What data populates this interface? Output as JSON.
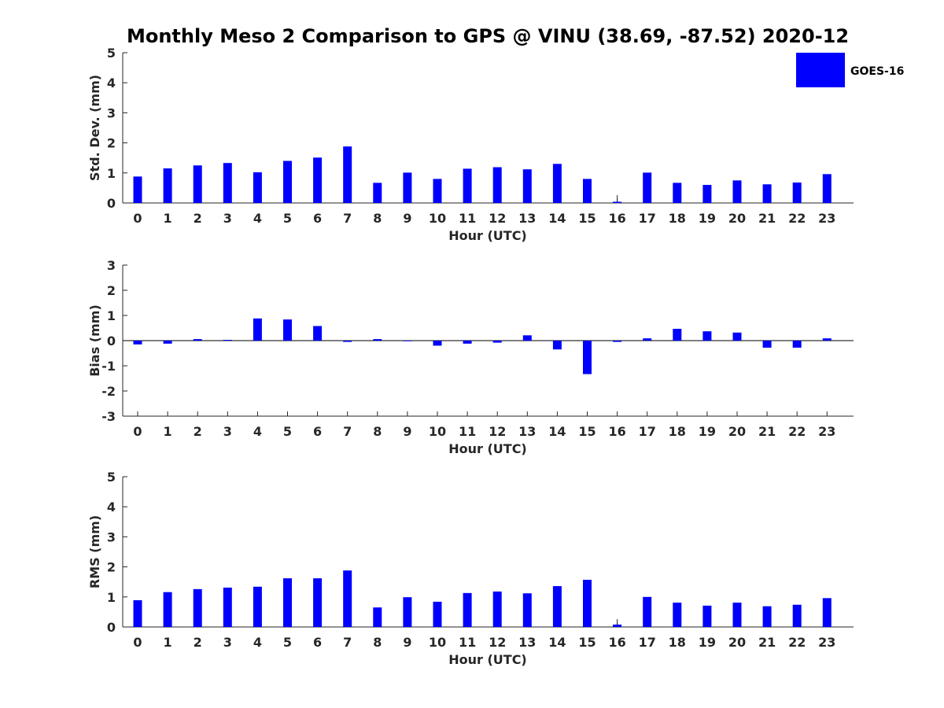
{
  "title": "Monthly Meso 2 Comparison to GPS @ VINU (38.69, -87.52) 2020-12",
  "legend": {
    "label": "GOES-16",
    "color": "#0000ff"
  },
  "chart_data": [
    {
      "type": "bar",
      "ylabel": "Std. Dev. (mm)",
      "xlabel": "Hour (UTC)",
      "ylim": [
        0,
        5
      ],
      "yticks": [
        "0",
        "1",
        "2",
        "3",
        "4",
        "5"
      ],
      "categories": [
        "0",
        "1",
        "2",
        "3",
        "4",
        "5",
        "6",
        "7",
        "8",
        "9",
        "10",
        "11",
        "12",
        "13",
        "14",
        "15",
        "16",
        "17",
        "18",
        "19",
        "20",
        "21",
        "22",
        "23"
      ],
      "series": [
        {
          "name": "GOES-16",
          "values": [
            0.88,
            1.15,
            1.25,
            1.33,
            1.02,
            1.4,
            1.51,
            1.88,
            0.67,
            1.01,
            0.8,
            1.14,
            1.19,
            1.12,
            1.3,
            0.8,
            0.04,
            1.01,
            0.67,
            0.6,
            0.75,
            0.62,
            0.68,
            0.96
          ]
        }
      ]
    },
    {
      "type": "bar",
      "ylabel": "Bias (mm)",
      "xlabel": "Hour (UTC)",
      "ylim": [
        -3,
        3
      ],
      "yticks": [
        "-3",
        "-2",
        "-1",
        "0",
        "1",
        "2",
        "3"
      ],
      "categories": [
        "0",
        "1",
        "2",
        "3",
        "4",
        "5",
        "6",
        "7",
        "8",
        "9",
        "10",
        "11",
        "12",
        "13",
        "14",
        "15",
        "16",
        "17",
        "18",
        "19",
        "20",
        "21",
        "22",
        "23"
      ],
      "series": [
        {
          "name": "GOES-16",
          "values": [
            -0.15,
            -0.12,
            0.06,
            0.03,
            0.88,
            0.84,
            0.58,
            -0.05,
            0.06,
            0.0,
            -0.2,
            -0.12,
            -0.08,
            0.21,
            -0.35,
            -1.33,
            -0.05,
            0.09,
            0.47,
            0.37,
            0.32,
            -0.28,
            -0.28,
            0.09
          ]
        }
      ]
    },
    {
      "type": "bar",
      "ylabel": "RMS (mm)",
      "xlabel": "Hour (UTC)",
      "ylim": [
        0,
        5
      ],
      "yticks": [
        "0",
        "1",
        "2",
        "3",
        "4",
        "5"
      ],
      "categories": [
        "0",
        "1",
        "2",
        "3",
        "4",
        "5",
        "6",
        "7",
        "8",
        "9",
        "10",
        "11",
        "12",
        "13",
        "14",
        "15",
        "16",
        "17",
        "18",
        "19",
        "20",
        "21",
        "22",
        "23"
      ],
      "series": [
        {
          "name": "GOES-16",
          "values": [
            0.89,
            1.16,
            1.26,
            1.31,
            1.34,
            1.62,
            1.62,
            1.88,
            0.65,
            0.99,
            0.84,
            1.13,
            1.18,
            1.12,
            1.36,
            1.57,
            0.08,
            1.0,
            0.81,
            0.71,
            0.81,
            0.69,
            0.74,
            0.96
          ]
        }
      ]
    }
  ]
}
